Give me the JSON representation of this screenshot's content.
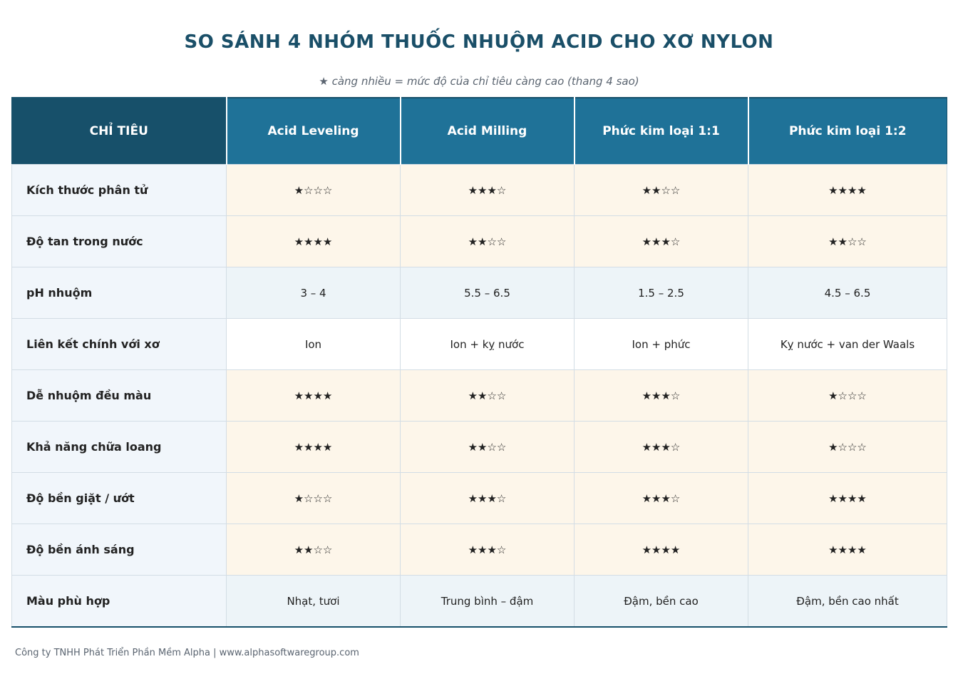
{
  "title": "SO SÁNH 4 NHÓM THUỐC NHUỘM ACID CHO XƠ NYLON",
  "subtitle": "★ càng nhiều = mức độ của chỉ tiêu càng cao  (thang 4 sao)",
  "header": {
    "criteria": "CHỈ TIÊU",
    "columns": [
      "Acid Leveling",
      "Acid Milling",
      "Phức kim loại 1:1",
      "Phức kim loại 1:2"
    ]
  },
  "rows": [
    {
      "label": "Kích thước phân tử",
      "kind": "stars",
      "cells": [
        "★☆☆☆",
        "★★★☆",
        "★★☆☆",
        "★★★★"
      ]
    },
    {
      "label": "Độ tan trong nước",
      "kind": "stars",
      "cells": [
        "★★★★",
        "★★☆☆",
        "★★★☆",
        "★★☆☆"
      ]
    },
    {
      "label": "pH nhuộm",
      "kind": "num",
      "cells": [
        "3 – 4",
        "5.5 – 6.5",
        "1.5 – 2.5",
        "4.5 – 6.5"
      ]
    },
    {
      "label": "Liên kết chính với xơ",
      "kind": "plain",
      "cells": [
        "Ion",
        "Ion + kỵ nước",
        "Ion + phức",
        "Kỵ nước + van der Waals"
      ]
    },
    {
      "label": "Dễ nhuộm đều màu",
      "kind": "stars",
      "cells": [
        "★★★★",
        "★★☆☆",
        "★★★☆",
        "★☆☆☆"
      ]
    },
    {
      "label": "Khả năng chữa loang",
      "kind": "stars",
      "cells": [
        "★★★★",
        "★★☆☆",
        "★★★☆",
        "★☆☆☆"
      ]
    },
    {
      "label": "Độ bền giặt / ướt",
      "kind": "stars",
      "cells": [
        "★☆☆☆",
        "★★★☆",
        "★★★☆",
        "★★★★"
      ]
    },
    {
      "label": "Độ bền ánh sáng",
      "kind": "stars",
      "cells": [
        "★★☆☆",
        "★★★☆",
        "★★★★",
        "★★★★"
      ]
    },
    {
      "label": "Màu phù hợp",
      "kind": "green",
      "cells": [
        "Nhạt, tươi",
        "Trung bình – đậm",
        "Đậm, bền cao",
        "Đậm, bền cao nhất"
      ]
    }
  ],
  "footer": "Công ty TNHH Phát Triển Phần Mềm Alpha  |  www.alphasoftwaregroup.com",
  "colors": {
    "header_dark": "#17506a",
    "header": "#1f7298",
    "star": "#e8a33a",
    "green_text": "#2e7d4f"
  }
}
